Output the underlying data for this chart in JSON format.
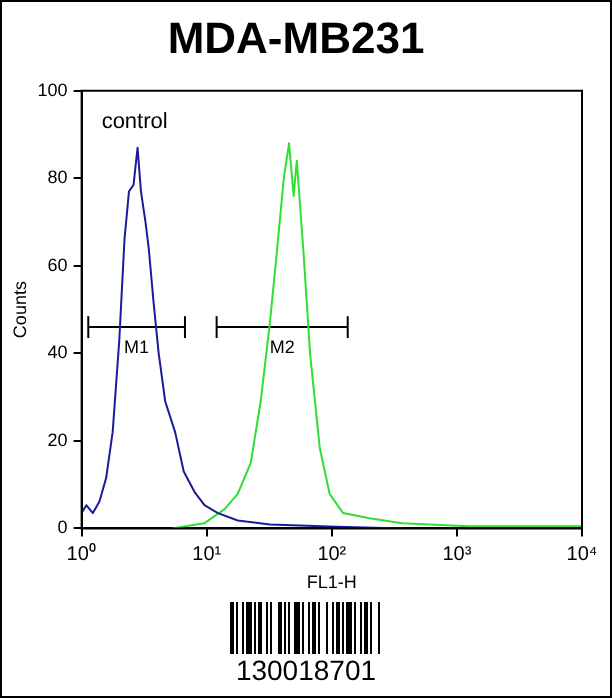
{
  "chart_data": {
    "type": "line",
    "title": "MDA-MB231",
    "xlabel": "FL1-H",
    "ylabel": "Counts",
    "log": "x",
    "xlim": [
      1,
      10000
    ],
    "ylim": [
      0,
      100
    ],
    "xticks": [
      {
        "value": 1,
        "label": "10⁰"
      },
      {
        "value": 10,
        "label": "10¹"
      },
      {
        "value": 100,
        "label": "10²"
      },
      {
        "value": 1000,
        "label": "10³"
      },
      {
        "value": 10000,
        "label": "10⁴"
      }
    ],
    "yticks": [
      0,
      20,
      40,
      60,
      80,
      100
    ],
    "grid": false,
    "legend": "left",
    "marker": "none",
    "line_style": "solid",
    "annotations": [
      "130018701"
    ],
    "series": [
      {
        "name": "control",
        "color": "#1a1a9a",
        "x": [
          1,
          1.09,
          1.23,
          1.39,
          1.57,
          1.77,
          2.0,
          2.2,
          2.39,
          2.6,
          2.8,
          2.98,
          3.24,
          3.44,
          3.75,
          4.13,
          4.66,
          5.59,
          6.55,
          8.0,
          9.6,
          12.3,
          17.7,
          32,
          110,
          365
        ],
        "values": [
          3.5,
          5.3,
          3.5,
          6.2,
          11.5,
          22,
          43,
          66,
          77,
          78.5,
          87,
          77,
          70,
          64,
          52,
          40,
          29,
          22,
          13,
          8.3,
          5.3,
          3.5,
          1.8,
          0.9,
          0.4,
          0
        ]
      },
      {
        "color": "#33dd33",
        "x": [
          5.3,
          9.6,
          13.9,
          17.7,
          22.5,
          27,
          32,
          36.6,
          41.3,
          45.5,
          49.5,
          52.5,
          59.4,
          67,
          80,
          96,
          123,
          200,
          365,
          1230,
          10000
        ],
        "values": [
          0,
          1.2,
          4.4,
          7.9,
          15,
          29,
          47,
          64,
          80,
          88,
          76,
          84,
          63,
          40,
          18.5,
          7.9,
          3.5,
          2.3,
          1.2,
          0.5,
          0.5
        ]
      },
      {
        "name": "M1",
        "color": "#000000",
        "x": [
          1.13,
          6.7
        ],
        "values": [
          46,
          46
        ],
        "errors": [
          2.5,
          2.5
        ]
      },
      {
        "name": "M2",
        "color": "#000000",
        "x": [
          12,
          134
        ],
        "values": [
          46,
          46
        ],
        "errors": [
          2.5,
          2.5
        ]
      }
    ]
  }
}
